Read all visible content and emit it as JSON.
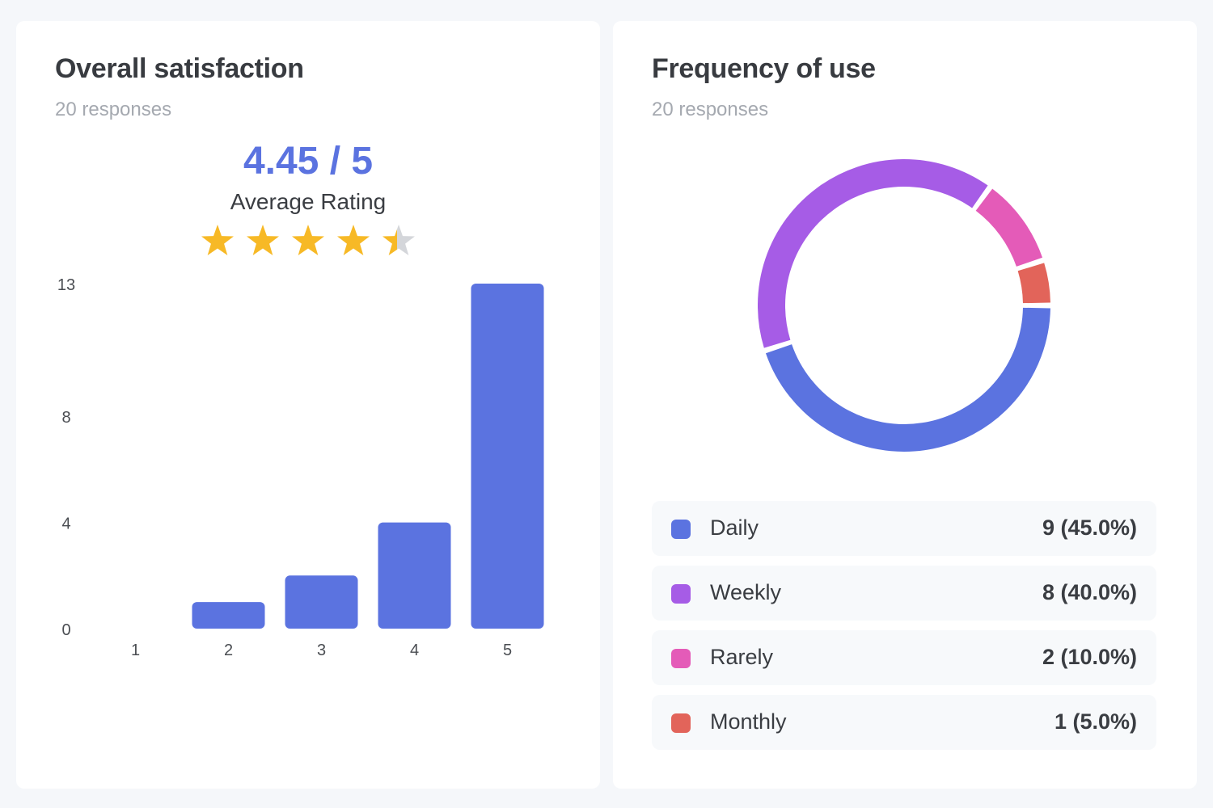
{
  "colors": {
    "bar": "#5b73e0",
    "star_full": "#f7b926",
    "star_empty": "#d4d6da"
  },
  "satisfaction": {
    "title": "Overall satisfaction",
    "subtitle": "20 responses",
    "average_value": "4.45 / 5",
    "average_label": "Average Rating",
    "rating": 4.45,
    "max_rating": 5
  },
  "frequency": {
    "title": "Frequency of use",
    "subtitle": "20 responses",
    "legend": [
      {
        "label": "Daily",
        "value": "9 (45.0%)",
        "color": "#5b73e0"
      },
      {
        "label": "Weekly",
        "value": "8 (40.0%)",
        "color": "#a65ce6"
      },
      {
        "label": "Rarely",
        "value": "2 (10.0%)",
        "color": "#e45bb8"
      },
      {
        "label": "Monthly",
        "value": "1 (5.0%)",
        "color": "#e2645a"
      }
    ]
  },
  "chart_data": [
    {
      "type": "bar",
      "title": "Overall satisfaction",
      "categories": [
        "1",
        "2",
        "3",
        "4",
        "5"
      ],
      "values": [
        0,
        1,
        2,
        4,
        13
      ],
      "y_ticks": [
        0,
        4,
        8,
        13
      ],
      "ylim": [
        0,
        13
      ],
      "grid": false
    },
    {
      "type": "pie",
      "title": "Frequency of use",
      "labels": [
        "Daily",
        "Weekly",
        "Rarely",
        "Monthly"
      ],
      "values": [
        9,
        8,
        2,
        1
      ],
      "colors": [
        "#5b73e0",
        "#a65ce6",
        "#e45bb8",
        "#e2645a"
      ]
    }
  ]
}
